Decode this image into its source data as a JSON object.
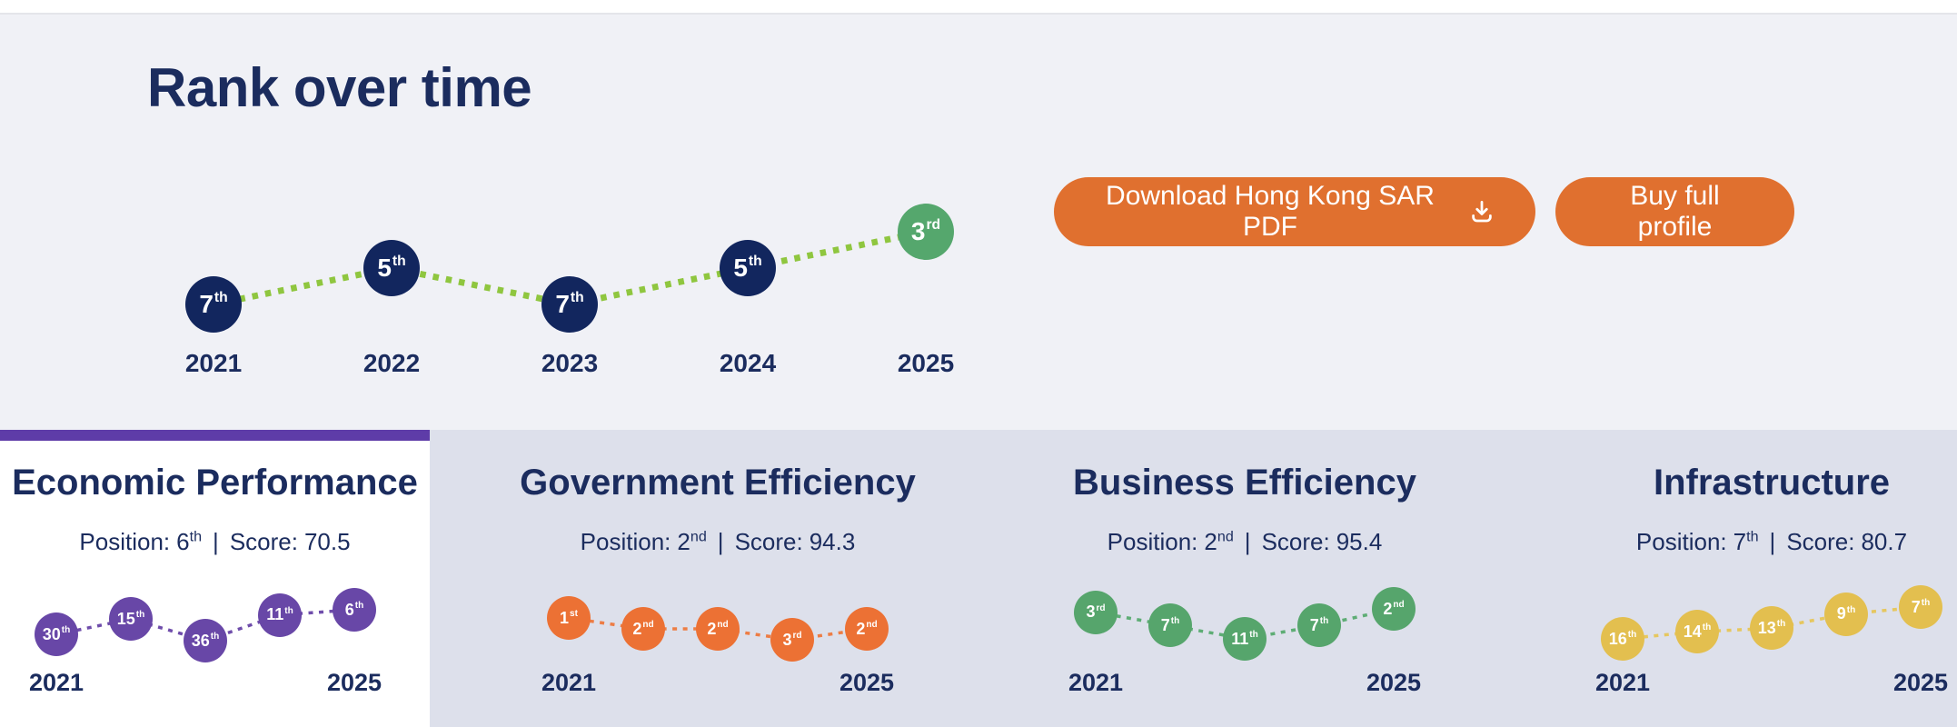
{
  "page": {
    "title": "Rank over time"
  },
  "buttons": {
    "download_label": "Download Hong Kong SAR PDF",
    "buy_label": "Buy full profile"
  },
  "colors": {
    "navy_text": "#1B2C5E",
    "navy_point": "#12265E",
    "overall_line_green": "#8FC63F",
    "highlight_green": "#55A76D",
    "button_orange": "#E0702F",
    "purple_accent": "#5E3CA8",
    "purple_point": "#6847A7",
    "orange_point": "#EC7134",
    "green_point": "#56A56C",
    "gold_point": "#E3BF4F",
    "hero_bg": "#F0F1F6",
    "bottom_bg": "#DDE0EB"
  },
  "panels": [
    {
      "title": "Economic Performance",
      "position_label": "Position:",
      "position_value": "6",
      "position_suffix": "th",
      "separator": "|",
      "score_label": "Score:",
      "score_value": "70.5"
    },
    {
      "title": "Government Efficiency",
      "position_label": "Position:",
      "position_value": "2",
      "position_suffix": "nd",
      "separator": "|",
      "score_label": "Score:",
      "score_value": "94.3"
    },
    {
      "title": "Business Efficiency",
      "position_label": "Position:",
      "position_value": "2",
      "position_suffix": "nd",
      "separator": "|",
      "score_label": "Score:",
      "score_value": "95.4"
    },
    {
      "title": "Infrastructure",
      "position_label": "Position:",
      "position_value": "7",
      "position_suffix": "th",
      "separator": "|",
      "score_label": "Score:",
      "score_value": "80.7"
    }
  ],
  "chart_data": [
    {
      "id": "overall",
      "type": "line",
      "title": "Rank over time",
      "x": [
        "2021",
        "2022",
        "2023",
        "2024",
        "2025"
      ],
      "ranks": [
        7,
        5,
        7,
        5,
        3
      ],
      "point_labels": [
        {
          "v": "7",
          "s": "th"
        },
        {
          "v": "5",
          "s": "th"
        },
        {
          "v": "7",
          "s": "th"
        },
        {
          "v": "5",
          "s": "th"
        },
        {
          "v": "3",
          "s": "rd"
        }
      ],
      "point_colors": [
        "#12265E",
        "#12265E",
        "#12265E",
        "#12265E",
        "#55A76D"
      ],
      "line_color": "#8FC63F",
      "line_style": "dotted",
      "year_ticks": [
        {
          "label": "2021",
          "index": 0
        },
        {
          "label": "2022",
          "index": 1
        },
        {
          "label": "2023",
          "index": 2
        },
        {
          "label": "2024",
          "index": 3
        },
        {
          "label": "2025",
          "index": 4
        }
      ],
      "note": "lower rank number plotted higher"
    },
    {
      "id": "economic",
      "type": "line",
      "title": "Economic Performance",
      "position": "6th",
      "score": "70.5",
      "x": [
        "2021",
        "2022",
        "2023",
        "2024",
        "2025"
      ],
      "ranks": [
        30,
        15,
        36,
        11,
        6
      ],
      "point_labels": [
        {
          "v": "30",
          "s": "th"
        },
        {
          "v": "15",
          "s": "th"
        },
        {
          "v": "36",
          "s": "th"
        },
        {
          "v": "11",
          "s": "th"
        },
        {
          "v": "6",
          "s": "th"
        }
      ],
      "point_colors": [
        "#6847A7",
        "#6847A7",
        "#6847A7",
        "#6847A7",
        "#6847A7"
      ],
      "line_color": "#6F4DAB",
      "line_style": "dashed",
      "year_ticks": [
        {
          "label": "2021",
          "index": 0
        },
        {
          "label": "2025",
          "index": 4
        }
      ]
    },
    {
      "id": "government",
      "type": "line",
      "title": "Government Efficiency",
      "position": "2nd",
      "score": "94.3",
      "x": [
        "2021",
        "2022",
        "2023",
        "2024",
        "2025"
      ],
      "ranks": [
        1,
        2,
        2,
        3,
        2
      ],
      "point_labels": [
        {
          "v": "1",
          "s": "st"
        },
        {
          "v": "2",
          "s": "nd"
        },
        {
          "v": "2",
          "s": "nd"
        },
        {
          "v": "3",
          "s": "rd"
        },
        {
          "v": "2",
          "s": "nd"
        }
      ],
      "point_colors": [
        "#EC7134",
        "#EC7134",
        "#EC7134",
        "#EC7134",
        "#EC7134"
      ],
      "line_color": "#ED7D45",
      "line_style": "dashed",
      "year_ticks": [
        {
          "label": "2021",
          "index": 0
        },
        {
          "label": "2025",
          "index": 4
        }
      ]
    },
    {
      "id": "business",
      "type": "line",
      "title": "Business Efficiency",
      "position": "2nd",
      "score": "95.4",
      "x": [
        "2021",
        "2022",
        "2023",
        "2024",
        "2025"
      ],
      "ranks": [
        3,
        7,
        11,
        7,
        2
      ],
      "point_labels": [
        {
          "v": "3",
          "s": "rd"
        },
        {
          "v": "7",
          "s": "th"
        },
        {
          "v": "11",
          "s": "th"
        },
        {
          "v": "7",
          "s": "th"
        },
        {
          "v": "2",
          "s": "nd"
        }
      ],
      "point_colors": [
        "#56A56C",
        "#56A56C",
        "#56A56C",
        "#56A56C",
        "#56A56C"
      ],
      "line_color": "#5EAD75",
      "line_style": "dashed",
      "year_ticks": [
        {
          "label": "2021",
          "index": 0
        },
        {
          "label": "2025",
          "index": 4
        }
      ]
    },
    {
      "id": "infrastructure",
      "type": "line",
      "title": "Infrastructure",
      "position": "7th",
      "score": "80.7",
      "x": [
        "2021",
        "2022",
        "2023",
        "2024",
        "2025"
      ],
      "ranks": [
        16,
        14,
        13,
        9,
        7
      ],
      "point_labels": [
        {
          "v": "16",
          "s": "th"
        },
        {
          "v": "14",
          "s": "th"
        },
        {
          "v": "13",
          "s": "th"
        },
        {
          "v": "9",
          "s": "th"
        },
        {
          "v": "7",
          "s": "th"
        }
      ],
      "point_colors": [
        "#E3BF4F",
        "#E3BF4F",
        "#E3BF4F",
        "#E3BF4F",
        "#E3BF4F"
      ],
      "line_color": "#E6C75F",
      "line_style": "dashed",
      "year_ticks": [
        {
          "label": "2021",
          "index": 0
        },
        {
          "label": "2025",
          "index": 4
        }
      ]
    }
  ]
}
